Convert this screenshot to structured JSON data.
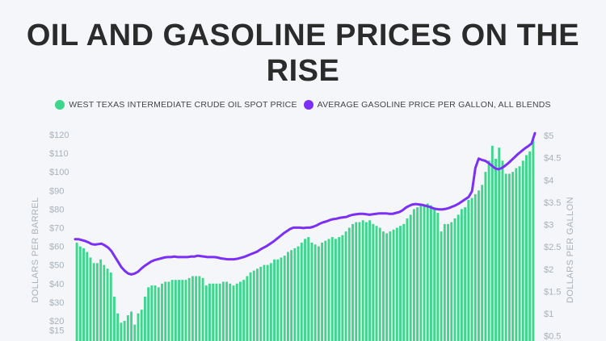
{
  "title_line1": "OIL AND GASOLINE PRICES ON THE",
  "title_line2": "RISE",
  "legend": [
    {
      "label": "WEST TEXAS INTERMEDIATE CRUDE OIL SPOT PRICE",
      "color": "#3dd68c"
    },
    {
      "label": "AVERAGE GASOLINE PRICE PER GALLON, ALL BLENDS",
      "color": "#7b2ff7"
    }
  ],
  "left_axis_title": "DOLLARS PER BARREL",
  "right_axis_title": "DOLLARS PER GALLON",
  "chart_data": {
    "type": "bar",
    "title": "OIL AND GASOLINE PRICES ON THE RISE",
    "ylabel": "DOLLARS PER BARREL",
    "y2label": "DOLLARS PER GALLON",
    "ylim": [
      15,
      120
    ],
    "y2lim": [
      0.5,
      5
    ],
    "yticks": [
      "$15",
      "$20",
      "$30",
      "$40",
      "$50",
      "$60",
      "$70",
      "$80",
      "$90",
      "$100",
      "$110",
      "$120"
    ],
    "y2ticks": [
      "$0.5",
      "$1",
      "$1.5",
      "$2",
      "$2.5",
      "$3",
      "$3.5",
      "$4",
      "$4.5",
      "$5"
    ],
    "grid": false,
    "legend_position": "top",
    "series": [
      {
        "name": "WEST TEXAS INTERMEDIATE CRUDE OIL SPOT PRICE",
        "kind": "bar",
        "axis": "left",
        "color": "#3dd68c",
        "values": [
          62,
          60,
          59,
          57,
          54,
          51,
          51,
          53,
          50,
          48,
          46,
          33,
          24,
          19,
          20,
          23,
          25,
          18,
          24,
          26,
          33,
          38,
          39,
          39,
          38,
          40,
          41,
          41,
          42,
          42,
          42,
          42,
          42,
          43,
          44,
          44,
          44,
          43,
          39,
          40,
          40,
          40,
          40,
          41,
          41,
          40,
          39,
          40,
          41,
          42,
          44,
          46,
          47,
          48,
          49,
          50,
          50,
          51,
          53,
          53,
          54,
          55,
          57,
          58,
          59,
          60,
          62,
          64,
          65,
          62,
          61,
          60,
          62,
          63,
          64,
          65,
          64,
          65,
          66,
          68,
          70,
          72,
          73,
          73,
          74,
          73,
          74,
          72,
          71,
          70,
          68,
          67,
          68,
          69,
          70,
          71,
          72,
          75,
          77,
          80,
          81,
          82,
          82,
          83,
          82,
          80,
          78,
          68,
          72,
          72,
          73,
          75,
          77,
          80,
          81,
          85,
          86,
          88,
          90,
          93,
          100,
          106,
          114,
          107,
          113,
          106,
          99,
          99,
          100,
          102,
          103,
          106,
          109,
          111,
          117
        ]
      },
      {
        "name": "AVERAGE GASOLINE PRICE PER GALLON, ALL BLENDS",
        "kind": "line",
        "axis": "right",
        "color": "#7b2ff7",
        "values": [
          2.67,
          2.67,
          2.65,
          2.63,
          2.6,
          2.56,
          2.55,
          2.56,
          2.57,
          2.53,
          2.48,
          2.4,
          2.28,
          2.16,
          2.04,
          1.96,
          1.9,
          1.88,
          1.9,
          1.94,
          2.01,
          2.07,
          2.12,
          2.17,
          2.2,
          2.22,
          2.24,
          2.26,
          2.27,
          2.27,
          2.28,
          2.27,
          2.27,
          2.27,
          2.27,
          2.28,
          2.28,
          2.3,
          2.29,
          2.28,
          2.27,
          2.27,
          2.27,
          2.26,
          2.24,
          2.23,
          2.22,
          2.22,
          2.22,
          2.23,
          2.25,
          2.27,
          2.3,
          2.33,
          2.36,
          2.39,
          2.44,
          2.48,
          2.52,
          2.57,
          2.62,
          2.68,
          2.74,
          2.8,
          2.85,
          2.9,
          2.93,
          2.93,
          2.93,
          2.92,
          2.93,
          2.93,
          2.95,
          2.98,
          3.02,
          3.05,
          3.07,
          3.1,
          3.12,
          3.13,
          3.15,
          3.16,
          3.17,
          3.2,
          3.22,
          3.23,
          3.24,
          3.24,
          3.23,
          3.22,
          3.23,
          3.24,
          3.25,
          3.25,
          3.25,
          3.24,
          3.24,
          3.26,
          3.28,
          3.32,
          3.38,
          3.42,
          3.45,
          3.46,
          3.45,
          3.44,
          3.42,
          3.4,
          3.37,
          3.35,
          3.34,
          3.34,
          3.35,
          3.37,
          3.4,
          3.43,
          3.47,
          3.52,
          3.57,
          3.62,
          3.75,
          4.27,
          4.48,
          4.45,
          4.43,
          4.38,
          4.32,
          4.26,
          4.24,
          4.27,
          4.32,
          4.38,
          4.45,
          4.52,
          4.59,
          4.65,
          4.71,
          4.76,
          4.82,
          5.05
        ]
      }
    ]
  }
}
